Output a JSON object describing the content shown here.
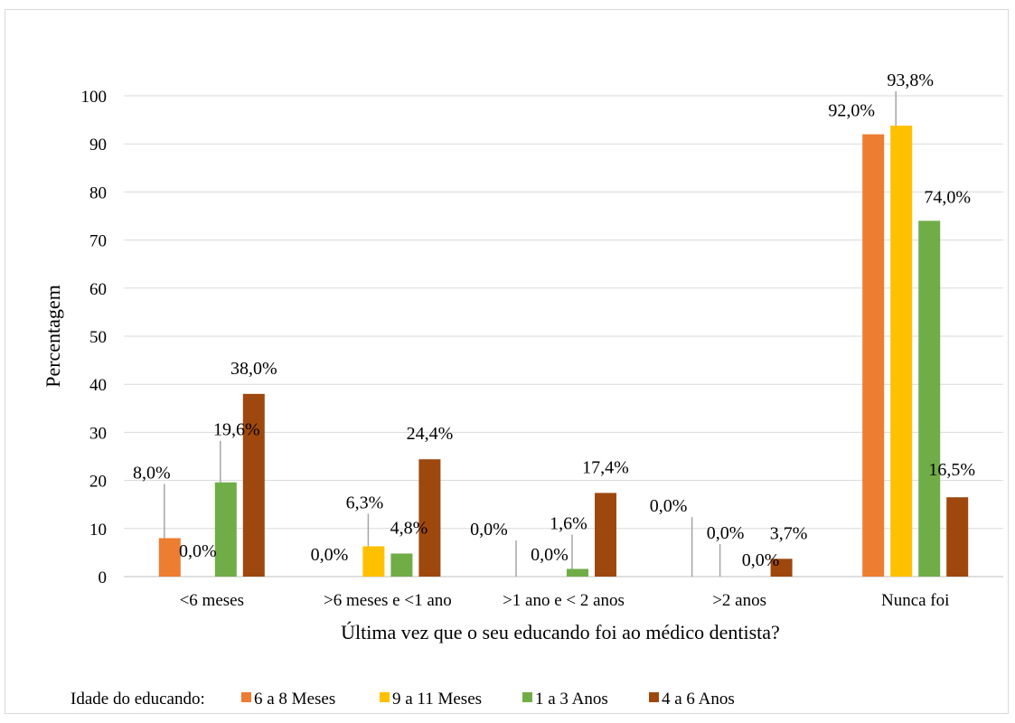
{
  "chart_data": {
    "type": "bar",
    "title": "",
    "xlabel": "Última vez que o seu educando foi ao médico dentista?",
    "ylabel": "Percentagem",
    "ylim": [
      0,
      100
    ],
    "yticks": [
      0,
      10,
      20,
      30,
      40,
      50,
      60,
      70,
      80,
      90,
      100
    ],
    "grid": true,
    "legend_position": "bottom",
    "legend_title": "Idade do educando:",
    "categories": [
      "<6 meses",
      ">6 meses e <1 ano",
      ">1 ano e < 2 anos",
      ">2 anos",
      "Nunca foi"
    ],
    "series": [
      {
        "name": "6 a 8 Meses",
        "color": "#ED7D31",
        "values": [
          8.0,
          0.0,
          0.0,
          0.0,
          92.0
        ],
        "labels": [
          "8,0%",
          "0,0%",
          "0,0%",
          "0,0%",
          "92,0%"
        ]
      },
      {
        "name": "9 a 11 Meses",
        "color": "#FFC000",
        "values": [
          0.0,
          6.3,
          0.0,
          0.0,
          93.8
        ],
        "labels": [
          "0,0%",
          "6,3%",
          "0,0%",
          "0,0%",
          "93,8%"
        ]
      },
      {
        "name": "1 a 3 Anos",
        "color": "#70AD47",
        "values": [
          19.6,
          4.8,
          1.6,
          0.0,
          74.0
        ],
        "labels": [
          "19,6%",
          "4,8%",
          "1,6%",
          "0,0%",
          "74,0%"
        ]
      },
      {
        "name": "4 a 6 Anos",
        "color": "#9E480E",
        "values": [
          38.0,
          24.4,
          17.4,
          3.7,
          16.5
        ],
        "labels": [
          "38,0%",
          "24,4%",
          "17,4%",
          "3,7%",
          "16,5%"
        ]
      }
    ]
  }
}
